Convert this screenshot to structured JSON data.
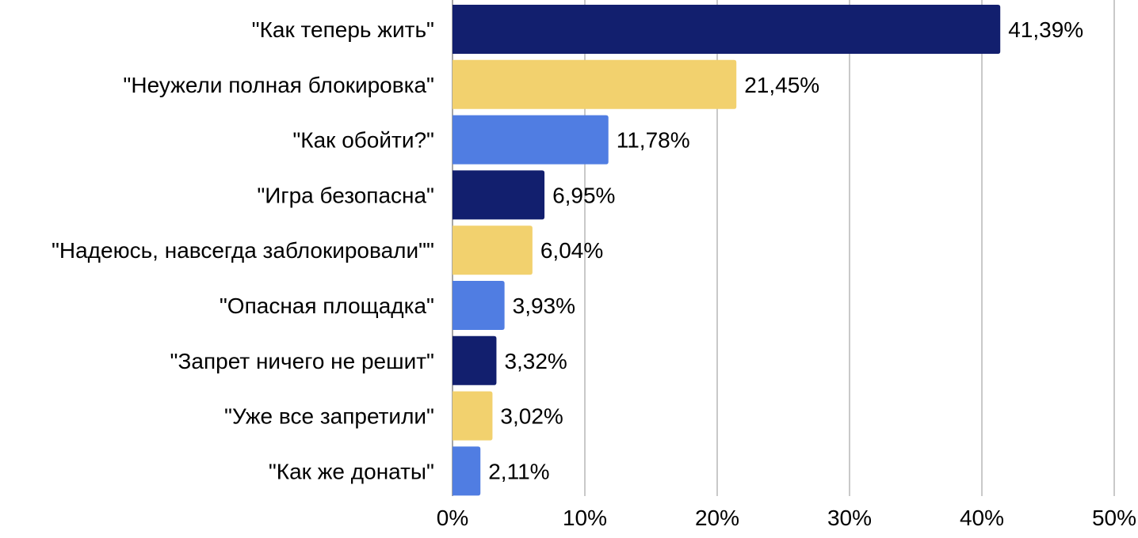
{
  "chart_data": {
    "type": "bar",
    "orientation": "horizontal",
    "title": "",
    "xlabel": "",
    "ylabel": "",
    "xlim": [
      0,
      50
    ],
    "x_ticks": [
      "0%",
      "10%",
      "20%",
      "30%",
      "40%",
      "50%"
    ],
    "grid": "vertical",
    "legend": "none",
    "categories": [
      "\"Как теперь жить\"",
      "\"Неужели полная блокировка\"",
      "\"Как обойти?\"",
      "\"Игра безопасна\"",
      "\"Надеюсь, навсегда заблокировали\"\"",
      "\"Опасная площадка\"",
      "\"Запрет ничего не решит\"",
      "\"Уже все запретили\"",
      "\"Как же донаты\""
    ],
    "values": [
      41.39,
      21.45,
      11.78,
      6.95,
      6.04,
      3.93,
      3.32,
      3.02,
      2.11
    ],
    "data_labels": [
      "41,39%",
      "21,45%",
      "11,78%",
      "6,95%",
      "6,04%",
      "3,93%",
      "3,32%",
      "3,02%",
      "2,11%"
    ],
    "colors": [
      "#121f6e",
      "#f2d16e",
      "#507de2",
      "#121f6e",
      "#f2d16e",
      "#507de2",
      "#121f6e",
      "#f2d16e",
      "#507de2"
    ]
  }
}
